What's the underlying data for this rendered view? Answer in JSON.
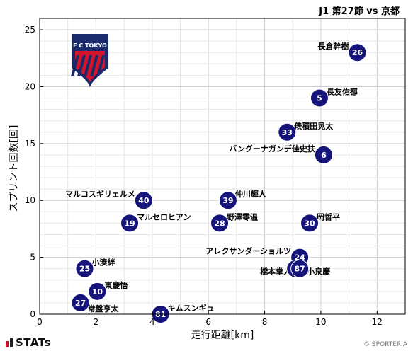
{
  "header": {
    "match_title": "J1 第27節 vs 京都"
  },
  "brand": {
    "logo_text": "STATs",
    "credit": "© SPORTERIA",
    "team_crest_text": "F C TOKYO"
  },
  "colors": {
    "marker": "#14147a",
    "marker_text": "#ffffff",
    "grid": "#d9d9d9",
    "crest_blue": "#1b2a6b",
    "crest_red": "#d4142a"
  },
  "chart_data": {
    "type": "scatter",
    "title": "J1 第27節 vs 京都",
    "xlabel": "走行距離[km]",
    "ylabel": "スプリント回数[回]",
    "xlim": [
      0,
      13
    ],
    "ylim": [
      0,
      26
    ],
    "xticks": [
      0,
      2,
      4,
      6,
      8,
      10,
      12
    ],
    "yticks": [
      0,
      5,
      10,
      15,
      20,
      25
    ],
    "grid": true,
    "points": [
      {
        "number": "26",
        "name": "長倉幹樹",
        "x": 11.3,
        "y": 23
      },
      {
        "number": "5",
        "name": "長友佑都",
        "x": 9.95,
        "y": 19
      },
      {
        "number": "33",
        "name": "俵積田晃太",
        "x": 8.8,
        "y": 16
      },
      {
        "number": "6",
        "name": "バングーナガンデ佳史扶",
        "x": 10.1,
        "y": 14
      },
      {
        "number": "40",
        "name": "マルコスギリェルメ",
        "x": 3.7,
        "y": 10
      },
      {
        "number": "39",
        "name": "仲川輝人",
        "x": 6.7,
        "y": 10
      },
      {
        "number": "19",
        "name": "マルセロヒアン",
        "x": 3.2,
        "y": 8
      },
      {
        "number": "28",
        "name": "野澤零温",
        "x": 6.4,
        "y": 8
      },
      {
        "number": "30",
        "name": "岡哲平",
        "x": 9.6,
        "y": 8
      },
      {
        "number": "24",
        "name": "アレクサンダーショルツ",
        "x": 9.25,
        "y": 5
      },
      {
        "number": "1",
        "name": "橋本拳人",
        "x": 9.1,
        "y": 4
      },
      {
        "number": "87",
        "name": "小泉慶",
        "x": 9.25,
        "y": 4
      },
      {
        "number": "25",
        "name": "小湊絆",
        "x": 1.6,
        "y": 4
      },
      {
        "number": "10",
        "name": "東慶悟",
        "x": 2.05,
        "y": 2
      },
      {
        "number": "27",
        "name": "常盤亨太",
        "x": 1.45,
        "y": 1
      },
      {
        "number": "81",
        "name": "キムスンギュ",
        "x": 4.3,
        "y": 0
      }
    ]
  }
}
